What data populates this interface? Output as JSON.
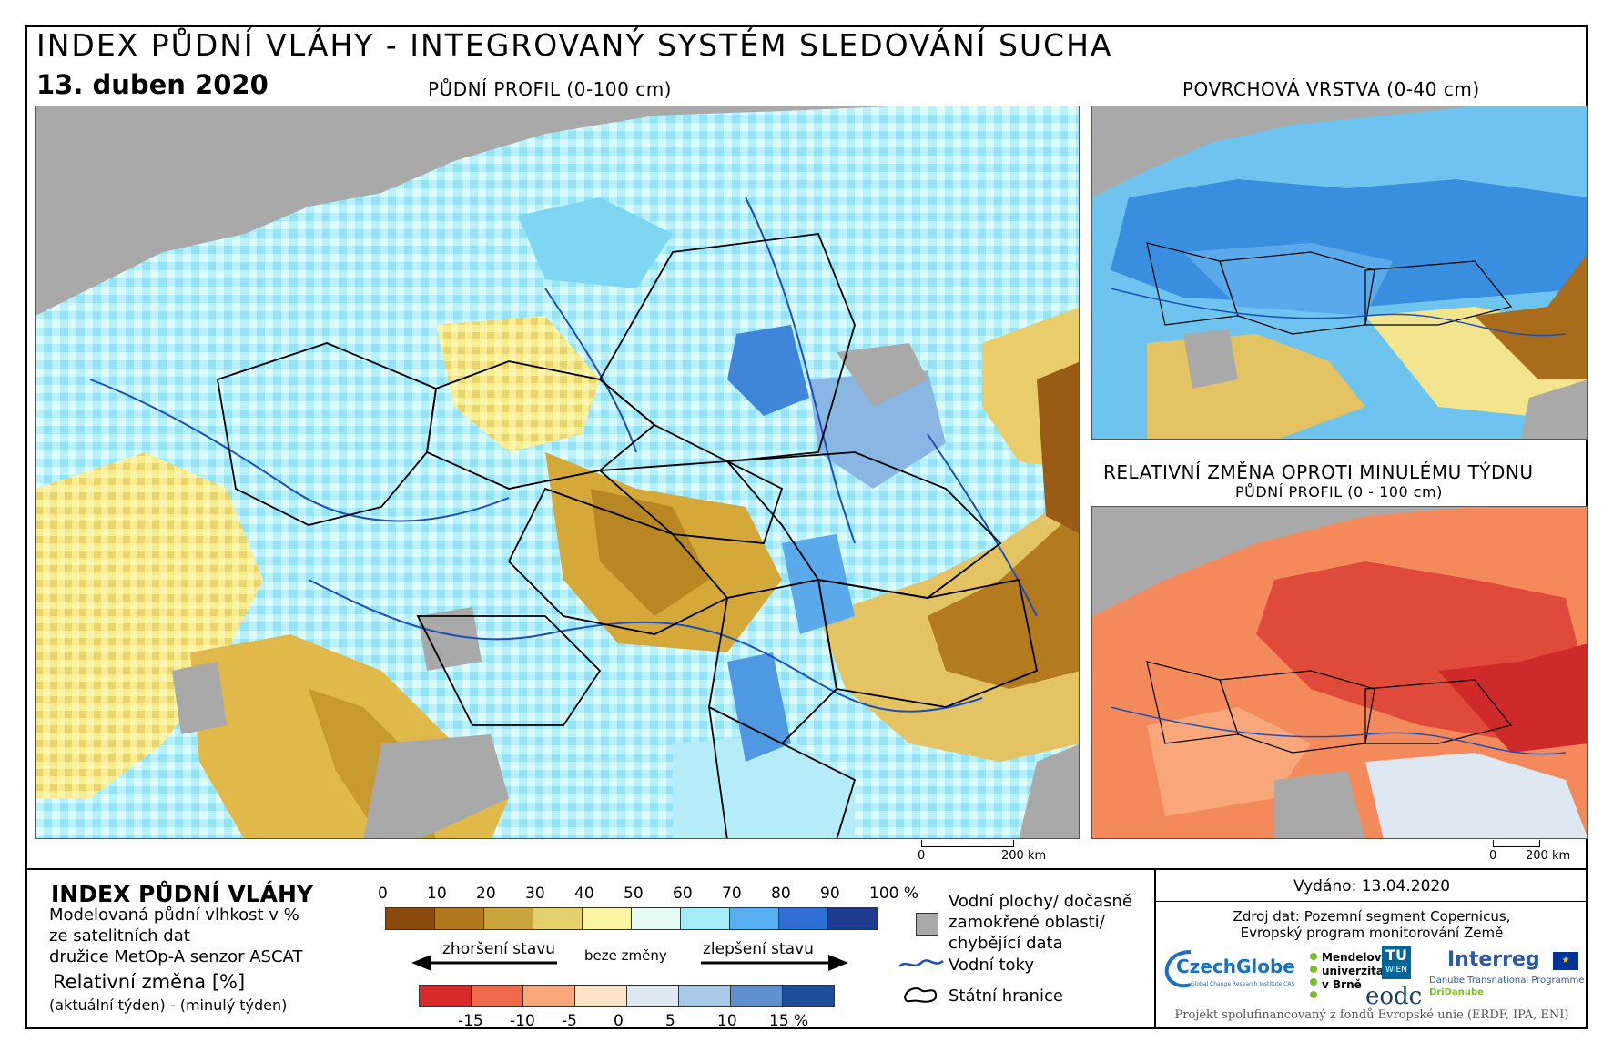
{
  "header": {
    "title": "INDEX PŮDNÍ VLÁHY - INTEGROVANÝ SYSTÉM SLEDOVÁNÍ SUCHA",
    "date": "13. duben 2020"
  },
  "maps": {
    "main_label": "PŮDNÍ PROFIL (0-100 cm)",
    "surface_label": "POVRCHOVÁ VRSTVA (0-40 cm)",
    "change_label": "RELATIVNÍ ZMĚNA OPROTI MINULÉMU TÝDNU",
    "change_sublabel": "PŮDNÍ PROFIL (0 - 100 cm)"
  },
  "scalebar": {
    "start": "0",
    "end": "200 km"
  },
  "legend": {
    "title": "INDEX PŮDNÍ VLÁHY",
    "desc_line1": "Modelovaná půdní vlhkost v %",
    "desc_line2": "ze satelitních dat",
    "desc_line3": "družice MetOp-A senzor ASCAT",
    "change_title": "Relativní změna [%]",
    "change_desc": "(aktuální týden) - (minulý týden)",
    "moisture_ticks": [
      "0",
      "10",
      "20",
      "30",
      "40",
      "50",
      "60",
      "70",
      "80",
      "90",
      "100 %"
    ],
    "moisture_colors": [
      "#8b4a0c",
      "#b07a1c",
      "#c9a43a",
      "#e3d06a",
      "#fbf5a3",
      "#e6fbf4",
      "#a5ebf7",
      "#57aef0",
      "#2f6fd3",
      "#1d3a8f"
    ],
    "arrow_worse": "zhoršení stavu",
    "arrow_none": "beze změny",
    "arrow_better": "zlepšení stavu",
    "change_ticks": [
      "-15",
      "-10",
      "-5",
      "0",
      "5",
      "10",
      "15 %"
    ],
    "change_colors": [
      "#d82a2a",
      "#f06a4a",
      "#f7a77a",
      "#fde3c8",
      "#dde8f3",
      "#a9c7e6",
      "#5f8fcf",
      "#1f4e9a"
    ],
    "water_bodies": "Vodní plochy/ dočasně zamokřené oblasti/ chybějící data",
    "water_line1": "Vodní plochy/ dočasně",
    "water_line2": "zamokřené oblasti/",
    "water_line3": "chybějící data",
    "rivers": "Vodní toky",
    "borders": "Státní hranice"
  },
  "source": {
    "issued": "Vydáno: 13.04.2020",
    "source_line1": "Zdroj dat: Pozemní segment Copernicus,",
    "source_line2": "Evropský program monitorování Země",
    "logo_czechglobe": "CzechGlobe",
    "logo_czechglobe_sub": "Global Change Research Institute CAS",
    "logo_mendel": "Mendelova univerzita v Brně",
    "logo_mendel_l1": "Mendelova",
    "logo_mendel_l2": "univerzita",
    "logo_mendel_l3": "v Brně",
    "logo_tu": "TU WIEN",
    "logo_tu_a": "TU",
    "logo_tu_b": "WIEN",
    "logo_eodc": "eodc",
    "logo_interreg": "Interreg",
    "logo_interreg_sub1": "Danube Transnational Programme",
    "logo_interreg_sub2": "DriDanube",
    "footer": "Projekt spolufinancovaný z fondů Evropské unie (ERDF, IPA, ENI)"
  }
}
